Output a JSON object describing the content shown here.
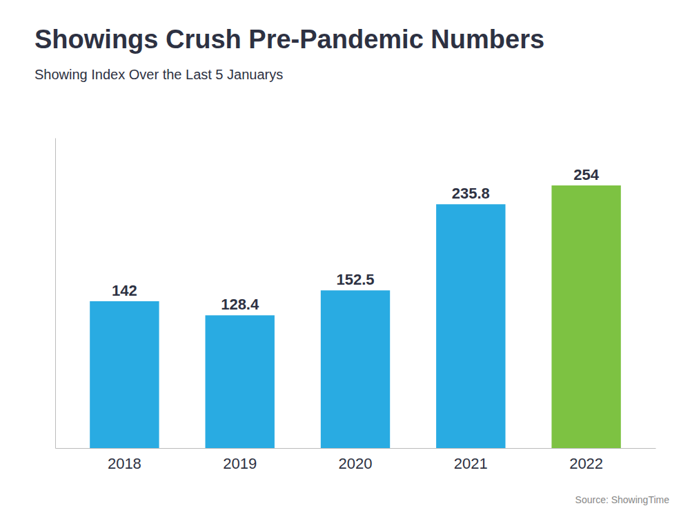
{
  "chart_data": {
    "type": "bar",
    "title": "Showings Crush Pre-Pandemic Numbers",
    "subtitle": "Showing Index Over the Last 5 Januarys",
    "source": "Source: ShowingTime",
    "categories": [
      "2018",
      "2019",
      "2020",
      "2021",
      "2022"
    ],
    "values": [
      142,
      128.4,
      152.5,
      235.8,
      254
    ],
    "colors": [
      "#29abe2",
      "#29abe2",
      "#29abe2",
      "#29abe2",
      "#7dc242"
    ],
    "ylim": [
      0,
      300
    ],
    "grid": false,
    "data_labels": true,
    "tick_labels": "x"
  }
}
